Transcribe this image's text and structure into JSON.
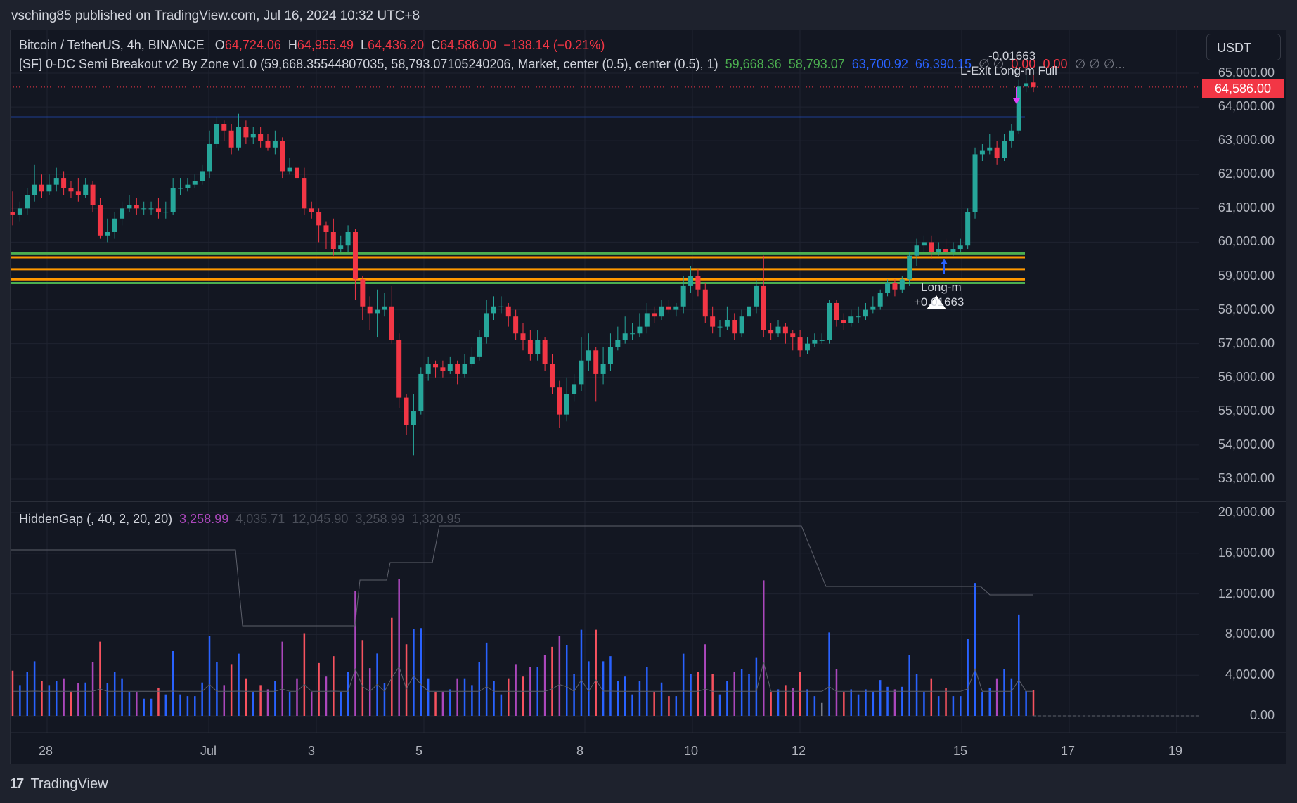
{
  "publish_line": "vsching85 published on TradingView.com, Jul 16, 2024 10:32 UTC+8",
  "currency_button": "USDT",
  "legend": {
    "symbol": "Bitcoin / TetherUS, 4h, BINANCE",
    "o_label": "O",
    "o_value": "64,724.06",
    "h_label": "H",
    "h_value": "64,955.49",
    "l_label": "L",
    "l_value": "64,436.20",
    "c_label": "C",
    "c_value": "64,586.00",
    "change": "−138.14 (−0.21%)",
    "indicator_name": "[SF] 0-DC Semi Breakout v2 By Zone v1.0 (59,668.35544807035, 58,793.07105240206, Market, center (0.5), center (0.5), 1)",
    "ind_v1": "59,668.36",
    "ind_v2": "58,793.07",
    "ind_v3": "63,700.92",
    "ind_v4": "66,390.15",
    "ind_tail1": "∅ ∅",
    "ind_v5": "0.00",
    "ind_v6": "0.00",
    "ind_tail2": "∅ ∅ ∅..."
  },
  "subpane_legend": {
    "name": "HiddenGap (, 40, 2, 20, 20)",
    "v1": "3,258.99",
    "v2": "4,035.71",
    "v3": "12,045.90",
    "v4": "3,258.99",
    "v5": "1,320.95"
  },
  "annotations": {
    "top_value": "-0.01663",
    "exit_label": "L-Exit Long-m Full",
    "entry_label": "Long-m",
    "entry_value": "+0.01663"
  },
  "current_price_tag": "64,586.00",
  "price_axis": [
    "65,000.00",
    "64,000.00",
    "63,000.00",
    "62,000.00",
    "61,000.00",
    "60,000.00",
    "59,000.00",
    "58,000.00",
    "57,000.00",
    "56,000.00",
    "55,000.00",
    "54,000.00",
    "53,000.00"
  ],
  "sub_axis": [
    "20,000.00",
    "16,000.00",
    "12,000.00",
    "8,000.00",
    "4,000.00",
    "0.00"
  ],
  "time_axis": [
    "28",
    "Jul",
    "3",
    "5",
    "8",
    "10",
    "12",
    "15",
    "17",
    "19"
  ],
  "footer_brand": "TradingView",
  "colors": {
    "up": "#26a69a",
    "down": "#f23645",
    "zone_green": "#4caf50",
    "zone_orange": "#ff9800",
    "blue_line": "#2962ff",
    "purple": "#9c27b0"
  },
  "chart_data": {
    "type": "candlestick",
    "symbol": "BTCUSDT",
    "interval": "4h",
    "ylim": [
      52500,
      65500
    ],
    "zone_lines": [
      59668.36,
      59550,
      59200,
      58900,
      58793.07
    ],
    "resistance_line": 63700.92,
    "candles": [
      [
        60900,
        60800,
        61500,
        60500
      ],
      [
        60800,
        61000,
        61200,
        60600
      ],
      [
        61000,
        61400,
        61600,
        60800
      ],
      [
        61400,
        61700,
        62300,
        61200
      ],
      [
        61700,
        61500,
        62000,
        61300
      ],
      [
        61500,
        61700,
        62000,
        61400
      ],
      [
        61700,
        61900,
        62200,
        61500
      ],
      [
        61900,
        61600,
        62100,
        61400
      ],
      [
        61600,
        61500,
        61800,
        61300
      ],
      [
        61500,
        61400,
        61900,
        61200
      ],
      [
        61400,
        61700,
        61900,
        61300
      ],
      [
        61700,
        61100,
        61800,
        60900
      ],
      [
        61100,
        60200,
        61300,
        60100
      ],
      [
        60200,
        60300,
        60700,
        60000
      ],
      [
        60300,
        60700,
        60900,
        60100
      ],
      [
        60700,
        61000,
        61200,
        60500
      ],
      [
        61000,
        61100,
        61400,
        60900
      ],
      [
        61100,
        61000,
        61300,
        60800
      ],
      [
        61000,
        61000,
        61200,
        60800
      ],
      [
        61000,
        61000,
        61200,
        60800
      ],
      [
        61000,
        60900,
        61300,
        60700
      ],
      [
        60900,
        60900,
        61200,
        60700
      ],
      [
        60900,
        61600,
        61900,
        60800
      ],
      [
        61600,
        61600,
        61900,
        61400
      ],
      [
        61600,
        61700,
        61900,
        61500
      ],
      [
        61700,
        61800,
        62000,
        61600
      ],
      [
        61800,
        62100,
        62300,
        61700
      ],
      [
        62100,
        62900,
        63300,
        61900
      ],
      [
        62900,
        63500,
        63700,
        62800
      ],
      [
        63500,
        63300,
        63600,
        63000
      ],
      [
        63300,
        62800,
        63500,
        62600
      ],
      [
        62800,
        63400,
        63800,
        62700
      ],
      [
        63400,
        63100,
        63600,
        62900
      ],
      [
        63100,
        63200,
        63400,
        62900
      ],
      [
        63200,
        63000,
        63400,
        62800
      ],
      [
        63000,
        62800,
        63200,
        62700
      ],
      [
        62800,
        63000,
        63300,
        62600
      ],
      [
        63000,
        62100,
        63100,
        61900
      ],
      [
        62100,
        62200,
        62500,
        62000
      ],
      [
        62200,
        61900,
        62400,
        61700
      ],
      [
        61900,
        61000,
        62200,
        60800
      ],
      [
        61000,
        60900,
        61200,
        60700
      ],
      [
        60900,
        60500,
        61000,
        60000
      ],
      [
        60500,
        60300,
        60600,
        59800
      ],
      [
        60300,
        59800,
        60700,
        59600
      ],
      [
        59800,
        59900,
        60200,
        59700
      ],
      [
        59900,
        60300,
        60500,
        59700
      ],
      [
        60300,
        58900,
        60400,
        58300
      ],
      [
        58900,
        58100,
        59000,
        57700
      ],
      [
        58100,
        57900,
        58400,
        57400
      ],
      [
        57900,
        58000,
        58600,
        57200
      ],
      [
        58000,
        58100,
        58500,
        57800
      ],
      [
        58100,
        57100,
        58700,
        57000
      ],
      [
        57100,
        55400,
        57300,
        55100
      ],
      [
        55400,
        54600,
        55500,
        54300
      ],
      [
        54600,
        55000,
        55500,
        53700
      ],
      [
        55000,
        56100,
        56300,
        54900
      ],
      [
        56100,
        56400,
        56600,
        55900
      ],
      [
        56400,
        56300,
        56500,
        56000
      ],
      [
        56300,
        56200,
        56500,
        56000
      ],
      [
        56200,
        56400,
        56600,
        56100
      ],
      [
        56400,
        56100,
        56500,
        55800
      ],
      [
        56100,
        56400,
        56700,
        56000
      ],
      [
        56400,
        56600,
        56900,
        56300
      ],
      [
        56600,
        57200,
        57400,
        56500
      ],
      [
        57200,
        57900,
        58300,
        57000
      ],
      [
        57900,
        58100,
        58400,
        57700
      ],
      [
        58100,
        58100,
        58400,
        57900
      ],
      [
        58100,
        57800,
        58200,
        57500
      ],
      [
        57800,
        57300,
        58000,
        57100
      ],
      [
        57300,
        57100,
        57600,
        56800
      ],
      [
        57100,
        56700,
        57400,
        56500
      ],
      [
        56700,
        57100,
        57400,
        56500
      ],
      [
        57100,
        56400,
        57200,
        56200
      ],
      [
        56400,
        55700,
        56700,
        55500
      ],
      [
        55700,
        54900,
        55900,
        54500
      ],
      [
        54900,
        55500,
        56000,
        54700
      ],
      [
        55500,
        55800,
        56100,
        55300
      ],
      [
        55800,
        56500,
        57200,
        55600
      ],
      [
        56500,
        56800,
        57300,
        56200
      ],
      [
        56800,
        56100,
        56900,
        55300
      ],
      [
        56100,
        56400,
        56900,
        55800
      ],
      [
        56400,
        56900,
        57300,
        56200
      ],
      [
        56900,
        57100,
        57500,
        56800
      ],
      [
        57100,
        57300,
        57800,
        57000
      ],
      [
        57300,
        57300,
        57600,
        57100
      ],
      [
        57300,
        57500,
        57900,
        57200
      ],
      [
        57500,
        57900,
        58200,
        57300
      ],
      [
        57900,
        57800,
        58100,
        57600
      ],
      [
        57800,
        58100,
        58300,
        57700
      ],
      [
        58100,
        58000,
        58300,
        57900
      ],
      [
        58000,
        58100,
        58200,
        57800
      ],
      [
        58100,
        58700,
        59000,
        57900
      ],
      [
        58700,
        59000,
        59300,
        58500
      ],
      [
        59000,
        58600,
        59200,
        58400
      ],
      [
        58600,
        57800,
        58800,
        57600
      ],
      [
        57800,
        57500,
        58100,
        57300
      ],
      [
        57500,
        57500,
        57700,
        57200
      ],
      [
        57500,
        57700,
        58100,
        57400
      ],
      [
        57700,
        57300,
        57900,
        57100
      ],
      [
        57300,
        57800,
        58000,
        57200
      ],
      [
        57800,
        58100,
        58400,
        57600
      ],
      [
        58100,
        58700,
        58900,
        57900
      ],
      [
        58700,
        57400,
        59600,
        57200
      ],
      [
        57400,
        57300,
        57600,
        57100
      ],
      [
        57300,
        57500,
        57700,
        57200
      ],
      [
        57500,
        57300,
        57600,
        57000
      ],
      [
        57300,
        57200,
        57400,
        56800
      ],
      [
        57200,
        56800,
        57400,
        56600
      ],
      [
        56800,
        57000,
        57200,
        56700
      ],
      [
        57000,
        57100,
        57300,
        56900
      ],
      [
        57100,
        57100,
        57300,
        57000
      ],
      [
        57100,
        58200,
        58300,
        57000
      ],
      [
        58200,
        57700,
        58300,
        57500
      ],
      [
        57700,
        57600,
        57900,
        57400
      ],
      [
        57600,
        57800,
        58000,
        57500
      ],
      [
        57800,
        57800,
        58100,
        57600
      ],
      [
        57800,
        58000,
        58200,
        57700
      ],
      [
        58000,
        58100,
        58400,
        57900
      ],
      [
        58100,
        58500,
        58600,
        58000
      ],
      [
        58500,
        58800,
        58900,
        58400
      ],
      [
        58800,
        58600,
        58900,
        58400
      ],
      [
        58600,
        58900,
        59000,
        58500
      ],
      [
        58900,
        59600,
        59700,
        58700
      ],
      [
        59600,
        59900,
        60100,
        59300
      ],
      [
        59900,
        60000,
        60200,
        59700
      ],
      [
        60000,
        59700,
        60200,
        59500
      ],
      [
        59700,
        59800,
        60000,
        59600
      ],
      [
        59800,
        59700,
        60100,
        59500
      ],
      [
        59700,
        59800,
        60000,
        59600
      ],
      [
        59800,
        59900,
        60100,
        59700
      ],
      [
        59900,
        60900,
        61000,
        59800
      ],
      [
        60900,
        62600,
        62800,
        60700
      ],
      [
        62600,
        62700,
        62900,
        62400
      ],
      [
        62700,
        62800,
        63200,
        62600
      ],
      [
        62800,
        62500,
        63000,
        62300
      ],
      [
        62500,
        63000,
        63200,
        62400
      ],
      [
        63000,
        63300,
        63500,
        62800
      ],
      [
        63300,
        64600,
        64800,
        63200
      ],
      [
        64600,
        64700,
        64955,
        64436
      ],
      [
        64724,
        64586,
        64955,
        64436
      ]
    ]
  }
}
